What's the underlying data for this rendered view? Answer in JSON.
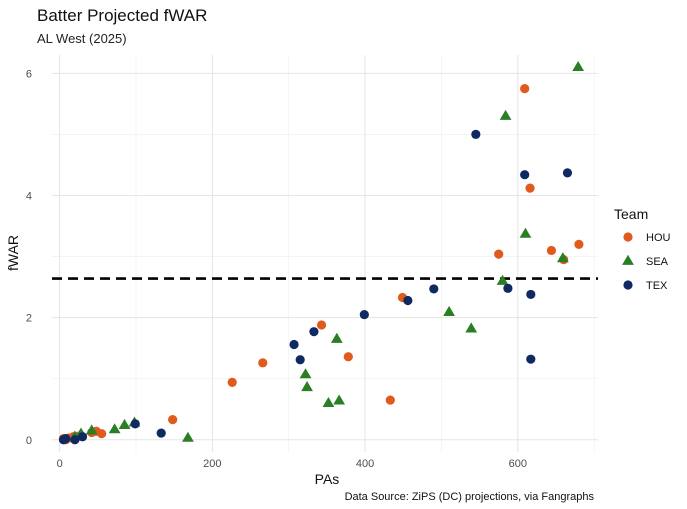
{
  "chart_data": {
    "type": "scatter",
    "title": "Batter Projected fWAR",
    "subtitle": "AL West (2025)",
    "xlabel": "PAs",
    "ylabel": "fWAR",
    "caption": "Data Source: ZiPS (DC) projections, via Fangraphs",
    "xlim": [
      -10,
      705
    ],
    "ylim": [
      -0.2,
      6.3
    ],
    "xticks": [
      0,
      200,
      400,
      600
    ],
    "yticks": [
      0,
      2,
      4,
      6
    ],
    "grid": true,
    "reference_line": {
      "y": 2.64,
      "style": "dashed"
    },
    "legend": {
      "title": "Team",
      "position": "right"
    },
    "series": [
      {
        "name": "HOU",
        "color": "#E05A1E",
        "shape": "circle",
        "points": [
          [
            5,
            0.02
          ],
          [
            8,
            0.0
          ],
          [
            12,
            0.03
          ],
          [
            18,
            0.05
          ],
          [
            25,
            0.06
          ],
          [
            42,
            0.12
          ],
          [
            48,
            0.14
          ],
          [
            55,
            0.1
          ],
          [
            148,
            0.33
          ],
          [
            226,
            0.94
          ],
          [
            266,
            1.26
          ],
          [
            343,
            1.88
          ],
          [
            378,
            1.36
          ],
          [
            433,
            0.65
          ],
          [
            449,
            2.33
          ],
          [
            575,
            3.04
          ],
          [
            609,
            5.75
          ],
          [
            616,
            4.12
          ],
          [
            644,
            3.1
          ],
          [
            660,
            2.95
          ],
          [
            680,
            3.2
          ]
        ]
      },
      {
        "name": "SEA",
        "color": "#2A7F24",
        "shape": "triangle",
        "points": [
          [
            20,
            0.05
          ],
          [
            28,
            0.1
          ],
          [
            42,
            0.15
          ],
          [
            72,
            0.17
          ],
          [
            85,
            0.24
          ],
          [
            98,
            0.28
          ],
          [
            168,
            0.03
          ],
          [
            322,
            1.07
          ],
          [
            324,
            0.86
          ],
          [
            352,
            0.6
          ],
          [
            363,
            1.65
          ],
          [
            366,
            0.64
          ],
          [
            510,
            2.09
          ],
          [
            539,
            1.82
          ],
          [
            580,
            2.6
          ],
          [
            584,
            5.3
          ],
          [
            610,
            3.37
          ],
          [
            659,
            2.97
          ],
          [
            679,
            6.1
          ]
        ]
      },
      {
        "name": "TEX",
        "color": "#0E2A61",
        "shape": "circle",
        "points": [
          [
            5,
            0.0
          ],
          [
            8,
            0.02
          ],
          [
            20,
            0.0
          ],
          [
            30,
            0.05
          ],
          [
            99,
            0.26
          ],
          [
            133,
            0.11
          ],
          [
            307,
            1.56
          ],
          [
            315,
            1.31
          ],
          [
            333,
            1.77
          ],
          [
            399,
            2.05
          ],
          [
            456,
            2.28
          ],
          [
            490,
            2.47
          ],
          [
            545,
            5.0
          ],
          [
            587,
            2.48
          ],
          [
            609,
            4.34
          ],
          [
            617,
            2.38
          ],
          [
            617,
            1.32
          ],
          [
            665,
            4.37
          ]
        ]
      }
    ]
  }
}
